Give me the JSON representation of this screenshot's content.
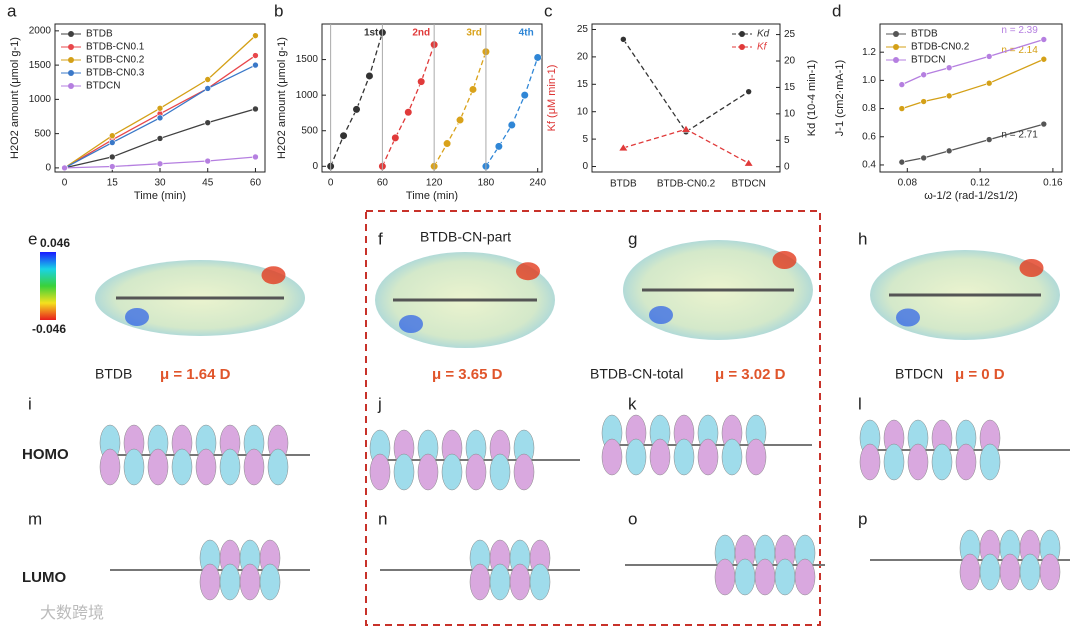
{
  "chart_data": [
    {
      "type": "line",
      "panel": "a",
      "xlabel": "Time (min)",
      "ylabel": "H2O2 amount (μmol g-1)",
      "x": [
        0,
        15,
        30,
        45,
        60
      ],
      "xlim": [
        -3,
        63
      ],
      "xticks": [
        0,
        15,
        30,
        45,
        60
      ],
      "ylim": [
        -60,
        2100
      ],
      "yticks": [
        0,
        500,
        1000,
        1500,
        2000
      ],
      "legend": "top-left",
      "marker": "circle",
      "series": [
        {
          "name": "BTDB",
          "color": "#404040",
          "values": [
            0,
            160,
            430,
            660,
            860
          ]
        },
        {
          "name": "BTDB-CN0.1",
          "color": "#e8474b",
          "values": [
            0,
            410,
            790,
            1160,
            1640
          ]
        },
        {
          "name": "BTDB-CN0.2",
          "color": "#d4a017",
          "values": [
            0,
            470,
            870,
            1290,
            1930
          ]
        },
        {
          "name": "BTDB-CN0.3",
          "color": "#3a78c8",
          "values": [
            0,
            370,
            730,
            1160,
            1500
          ]
        },
        {
          "name": "BTDCN",
          "color": "#b57fe0",
          "values": [
            0,
            20,
            60,
            100,
            160
          ]
        }
      ]
    },
    {
      "type": "line",
      "panel": "b",
      "xlabel": "Time (min)",
      "ylabel": "H2O2 amount (μmol g-1)",
      "xlim": [
        -10,
        245
      ],
      "xticks": [
        0,
        60,
        120,
        180,
        240
      ],
      "ylim": [
        -80,
        2000
      ],
      "yticks": [
        0,
        500,
        1000,
        1500
      ],
      "legend": "series-top",
      "dashed": true,
      "marker": "ball",
      "series": [
        {
          "name": "1st",
          "color": "#333333",
          "x": [
            0,
            15,
            30,
            45,
            60
          ],
          "values": [
            0,
            430,
            800,
            1270,
            1880
          ]
        },
        {
          "name": "2nd",
          "color": "#e03a3a",
          "x": [
            60,
            75,
            90,
            105,
            120
          ],
          "values": [
            0,
            400,
            760,
            1190,
            1710
          ]
        },
        {
          "name": "3rd",
          "color": "#d9a21a",
          "x": [
            120,
            135,
            150,
            165,
            180
          ],
          "values": [
            0,
            320,
            650,
            1080,
            1610
          ]
        },
        {
          "name": "4th",
          "color": "#2f86d6",
          "x": [
            180,
            195,
            210,
            225,
            240
          ],
          "values": [
            0,
            280,
            580,
            1000,
            1530
          ]
        }
      ]
    },
    {
      "type": "line",
      "panel": "c",
      "ylabel": "Kf (μM min-1)",
      "y2label": "Kd (10-4 min-1)",
      "categories": [
        "BTDB",
        "BTDB-CN0.2",
        "BTDCN"
      ],
      "ylim": [
        -1,
        26
      ],
      "yticks": [
        0,
        5,
        10,
        15,
        20,
        25
      ],
      "y2lim": [
        -1,
        27
      ],
      "y2ticks": [
        0,
        5,
        10,
        15,
        20,
        25
      ],
      "legend": "top-right",
      "dashed": true,
      "series": [
        {
          "name": "Kd",
          "color": "#333333",
          "axis": "y2",
          "marker": "circle",
          "values": [
            24.1,
            6.6,
            14.2
          ]
        },
        {
          "name": "Kf",
          "color": "#e03a3a",
          "marker": "triangle",
          "values": [
            3.4,
            6.8,
            0.6
          ]
        }
      ]
    },
    {
      "type": "line",
      "panel": "d",
      "xlabel": "ω-1/2 (rad-1/2s1/2)",
      "ylabel": "J-1 (cm2·mA-1)",
      "x": [
        0.077,
        0.089,
        0.103,
        0.125,
        0.155
      ],
      "xlim": [
        0.065,
        0.165
      ],
      "xticks": [
        0.08,
        0.12,
        0.16
      ],
      "ylim": [
        0.35,
        1.4
      ],
      "yticks": [
        0.4,
        0.6,
        0.8,
        {
          "value": 1,
          "label": "1.0"
        },
        1.2
      ],
      "legend": "top-left",
      "marker": "circle",
      "series": [
        {
          "name": "BTDB",
          "color": "#555555",
          "label": "n = 2.71",
          "values": [
            0.42,
            0.45,
            0.5,
            0.58,
            0.69
          ]
        },
        {
          "name": "BTDB-CN0.2",
          "color": "#d4a017",
          "label": "n = 2.14",
          "values": [
            0.8,
            0.85,
            0.89,
            0.98,
            1.15
          ]
        },
        {
          "name": "BTDCN",
          "color": "#b57fe0",
          "label": "n = 2.39",
          "values": [
            0.97,
            1.04,
            1.09,
            1.17,
            1.29
          ]
        }
      ]
    }
  ],
  "figure": {
    "panels": [
      "e",
      "f",
      "g",
      "h",
      "i",
      "j",
      "k",
      "l",
      "m",
      "n",
      "o",
      "p"
    ],
    "colorbar": {
      "max": "0.046",
      "min": "-0.046"
    },
    "molecules": [
      {
        "name": "BTDB",
        "dipole": "μ = 1.64 D"
      },
      {
        "name": "BTDB-CN-part",
        "dipole": "μ = 3.65 D"
      },
      {
        "name": "BTDB-CN-total",
        "dipole": "μ = 3.02 D"
      },
      {
        "name": "BTDCN",
        "dipole": "μ = 0 D"
      }
    ],
    "orbitals": [
      "HOMO",
      "LUMO"
    ],
    "watermark": "大数跨境"
  }
}
